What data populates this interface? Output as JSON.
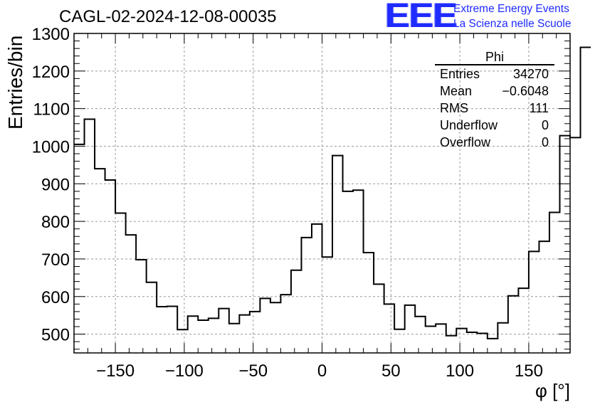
{
  "histogram": {
    "title": "CAGL-02-2024-12-08-00035",
    "logo": {
      "mark": "EEE",
      "line1": "Extreme Energy Events",
      "line2": "La Scienza nelle Scuole",
      "color": "#1f2bff"
    },
    "stats": {
      "title": "Phi",
      "rows": [
        {
          "label": "Entries",
          "value": "34270"
        },
        {
          "label": "Mean",
          "value": "−0.6048"
        },
        {
          "label": "RMS",
          "value": "111"
        },
        {
          "label": "Underflow",
          "value": "0"
        },
        {
          "label": "Overflow",
          "value": "0"
        }
      ]
    }
  },
  "chart_data": {
    "type": "bar",
    "subtype": "step-histogram",
    "title": "CAGL-02-2024-12-08-00035",
    "xlabel": "φ [°]",
    "ylabel": "Entries/bin",
    "xlim": [
      -180,
      180
    ],
    "ylim": [
      450,
      1300
    ],
    "xticks": [
      -150,
      -100,
      -50,
      0,
      50,
      100,
      150
    ],
    "xtick_labels": [
      "−150",
      "−100",
      "−50",
      "0",
      "50",
      "100",
      "150"
    ],
    "yticks": [
      500,
      600,
      700,
      800,
      900,
      1000,
      1100,
      1200,
      1300
    ],
    "ytick_labels": [
      "500",
      "600",
      "700",
      "800",
      "900",
      "1000",
      "1100",
      "1200",
      "1300"
    ],
    "grid": true,
    "legend": "top-right stats box",
    "series": [
      {
        "name": "Phi",
        "color": "#000000",
        "bin_edges_start": -180,
        "bin_width": 7.5,
        "values": [
          1005,
          1072,
          940,
          910,
          822,
          764,
          698,
          638,
          573,
          574,
          512,
          548,
          537,
          542,
          568,
          528,
          551,
          560,
          595,
          584,
          605,
          670,
          757,
          793,
          705,
          975,
          880,
          883,
          717,
          633,
          580,
          513,
          577,
          547,
          521,
          527,
          496,
          515,
          505,
          502,
          488,
          530,
          602,
          622,
          720,
          747,
          824,
          1028,
          1023,
          1263
        ]
      }
    ]
  }
}
